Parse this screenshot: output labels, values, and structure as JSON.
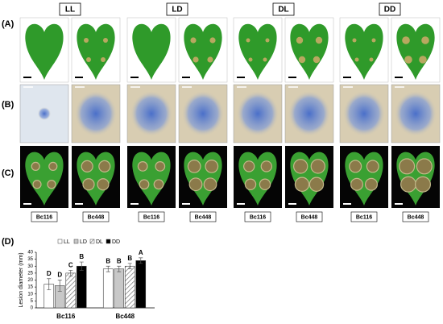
{
  "conditions": [
    "LL",
    "LD",
    "DL",
    "DD"
  ],
  "panels": [
    "(A)",
    "(B)",
    "(C)",
    "(D)"
  ],
  "samples": [
    "Bc116",
    "Bc448",
    "Bc116",
    "Bc448",
    "Bc116",
    "Bc448",
    "Bc116",
    "Bc448"
  ],
  "chart_data": {
    "type": "bar",
    "y_label": "Lesion diameter (mm)",
    "categories": [
      "Bc116",
      "Bc448"
    ],
    "series": [
      {
        "name": "LL",
        "color": "#ffffff",
        "values": [
          17,
          28
        ],
        "errors": [
          4,
          2
        ],
        "letters": [
          "D",
          "B"
        ]
      },
      {
        "name": "LD",
        "color": "#c8c8c8",
        "values": [
          16,
          28
        ],
        "errors": [
          4,
          2
        ],
        "letters": [
          "D",
          "B"
        ]
      },
      {
        "name": "DL",
        "color": "#ffffff",
        "pattern": "hatch",
        "values": [
          25,
          30
        ],
        "errors": [
          2,
          2
        ],
        "letters": [
          "C",
          "B"
        ]
      },
      {
        "name": "DD",
        "color": "#000000",
        "values": [
          30,
          34
        ],
        "errors": [
          3,
          2
        ],
        "letters": [
          "B",
          "A"
        ]
      }
    ],
    "ylim": [
      0,
      40
    ],
    "yticks": [
      0,
      5,
      10,
      15,
      20,
      25,
      30,
      35,
      40
    ],
    "grid": false
  }
}
